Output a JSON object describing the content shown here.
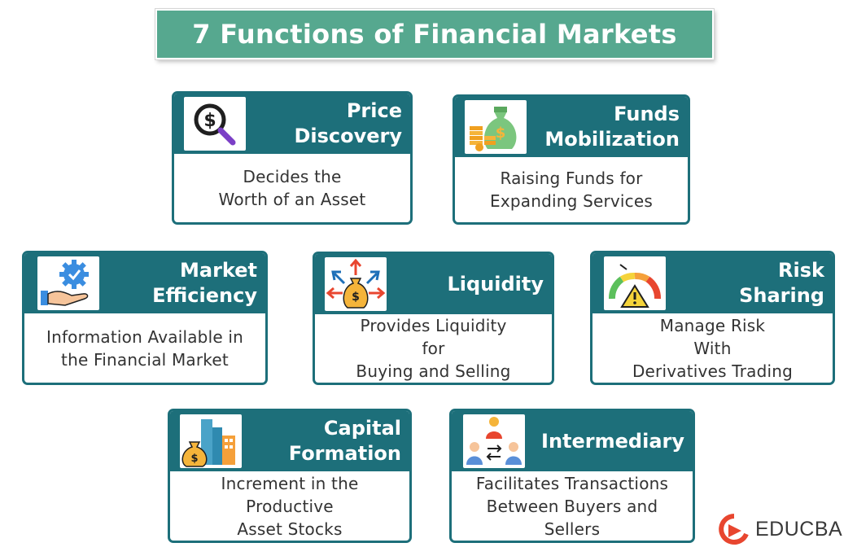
{
  "title": "7 Functions of Financial Markets",
  "colors": {
    "title_bg": "#56a88f",
    "card_accent": "#1d6f7a",
    "brand_red": "#e8462f"
  },
  "cards": [
    {
      "title": "Price\nDiscovery",
      "description": "Decides the\nWorth of an Asset",
      "icon": "dollar-magnifier-icon"
    },
    {
      "title": "Funds\nMobilization",
      "description": "Raising Funds for\nExpanding Services",
      "icon": "money-bag-coins-icon"
    },
    {
      "title": "Market\nEfficiency",
      "description": "Information Available in\nthe Financial Market",
      "icon": "hand-gear-icon"
    },
    {
      "title": "Liquidity",
      "description": "Provides Liquidity\nfor\nBuying and Selling",
      "icon": "money-bag-arrows-icon"
    },
    {
      "title": "Risk\nSharing",
      "description": "Manage Risk\nWith\nDerivatives Trading",
      "icon": "risk-gauge-icon"
    },
    {
      "title": "Capital\nFormation",
      "description": "Increment in the\nProductive\nAsset Stocks",
      "icon": "money-bag-buildings-icon"
    },
    {
      "title": "Intermediary",
      "description": "Facilitates Transactions\nBetween Buyers and\nSellers",
      "icon": "people-exchange-icon"
    }
  ],
  "brand": {
    "name": "EDUCBA",
    "icon": "educba-logo-icon"
  }
}
